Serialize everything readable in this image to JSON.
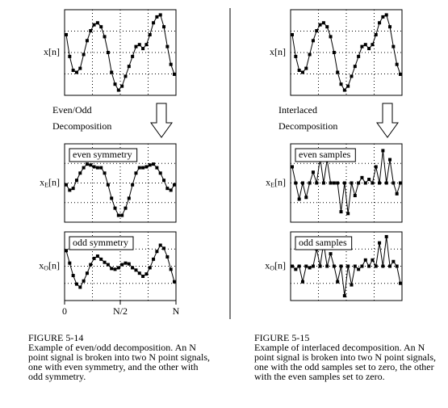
{
  "figures": [
    {
      "input": {
        "label": {
          "base": "x",
          "sub": "",
          "rest": "[n]"
        },
        "ylim": [
          -2,
          2
        ],
        "values": [
          0.9,
          -0.2,
          -0.9,
          -1.0,
          -0.8,
          -0.1,
          0.6,
          1.1,
          1.4,
          1.5,
          1.3,
          0.8,
          0.0,
          -1.0,
          -1.6,
          -1.9,
          -1.7,
          -1.2,
          -0.7,
          -0.2,
          0.3,
          0.4,
          0.2,
          0.4,
          0.9,
          1.5,
          1.8,
          1.9,
          1.3,
          0.3,
          -0.6,
          -1.1
        ]
      },
      "arrow_text": [
        "Even/Odd",
        "Decomposition"
      ],
      "panels": [
        {
          "legend": "even symmetry",
          "label": {
            "base": "x",
            "sub": "E",
            "rest": "[n]"
          },
          "ylim": [
            -2,
            2
          ],
          "values": [
            -0.1,
            -0.4,
            -0.3,
            0.15,
            0.55,
            0.85,
            1.05,
            1.0,
            0.9,
            0.85,
            0.85,
            0.55,
            -0.1,
            -0.85,
            -1.4,
            -1.8,
            -1.8,
            -1.4,
            -0.85,
            -0.1,
            0.55,
            0.85,
            0.85,
            0.9,
            1.0,
            1.05,
            0.85,
            0.55,
            0.15,
            -0.3,
            -0.4,
            -0.1
          ]
        },
        {
          "legend": "odd symmetry",
          "label": {
            "base": "x",
            "sub": "O",
            "rest": "[n]"
          },
          "ylim": [
            -2,
            2
          ],
          "values": [
            1.0,
            0.2,
            -0.6,
            -1.15,
            -1.35,
            -0.95,
            -0.45,
            0.1,
            0.5,
            0.65,
            0.45,
            0.25,
            0.1,
            -0.15,
            -0.2,
            -0.1,
            0.1,
            0.2,
            0.15,
            -0.1,
            -0.25,
            -0.45,
            -0.65,
            -0.5,
            -0.1,
            0.45,
            0.95,
            1.35,
            1.15,
            0.6,
            -0.2,
            -1.0
          ]
        }
      ],
      "x_labels": [
        "0",
        "N/2",
        "N"
      ],
      "caption": {
        "number": "FIGURE 5-14",
        "lines": [
          "Example of even/odd decomposition.  An N",
          "point signal is broken into two N point signals,",
          "one with even symmetry, and the other with",
          "odd symmetry."
        ]
      }
    },
    {
      "input": {
        "label": {
          "base": "x",
          "sub": "",
          "rest": "[n]"
        },
        "ylim": [
          -2,
          2
        ],
        "values": [
          0.9,
          -0.2,
          -0.9,
          -1.0,
          -0.8,
          -0.1,
          0.6,
          1.1,
          1.4,
          1.5,
          1.3,
          0.8,
          0.0,
          -1.0,
          -1.6,
          -1.9,
          -1.7,
          -1.2,
          -0.7,
          -0.2,
          0.3,
          0.4,
          0.2,
          0.4,
          0.9,
          1.5,
          1.8,
          1.9,
          1.3,
          0.3,
          -0.6,
          -1.1
        ]
      },
      "arrow_text": [
        "Interlaced",
        "Decomposition"
      ],
      "panels": [
        {
          "legend": "even samples",
          "label": {
            "base": "x",
            "sub": "E",
            "rest": "[n]"
          },
          "ylim": [
            -2,
            2
          ],
          "values": [
            0.9,
            0,
            -0.9,
            0,
            -0.8,
            0,
            0.6,
            0,
            1.4,
            0,
            1.3,
            0,
            0.0,
            0,
            -1.6,
            0,
            -1.7,
            0,
            -0.7,
            0,
            0.3,
            0,
            0.2,
            0,
            0.9,
            0,
            1.8,
            0,
            1.3,
            0,
            -0.6,
            0
          ]
        },
        {
          "legend": "odd samples",
          "label": {
            "base": "x",
            "sub": "O",
            "rest": "[n]"
          },
          "ylim": [
            -2,
            2
          ],
          "values": [
            0,
            -0.2,
            0,
            -1.0,
            0,
            -0.1,
            0,
            1.1,
            0,
            1.5,
            0,
            0.8,
            0,
            -1.0,
            0,
            -1.9,
            0,
            -1.2,
            0,
            -0.2,
            0,
            0.4,
            0,
            0.4,
            0,
            1.5,
            0,
            1.9,
            0,
            0.3,
            0,
            -1.1
          ]
        }
      ],
      "caption": {
        "number": "FIGURE 5-15",
        "lines": [
          "Example of interlaced decomposition. An N",
          "point signal is broken into two N point signals,",
          "one with the odd samples set to zero, the other",
          "with the even samples set to zero."
        ]
      }
    }
  ]
}
